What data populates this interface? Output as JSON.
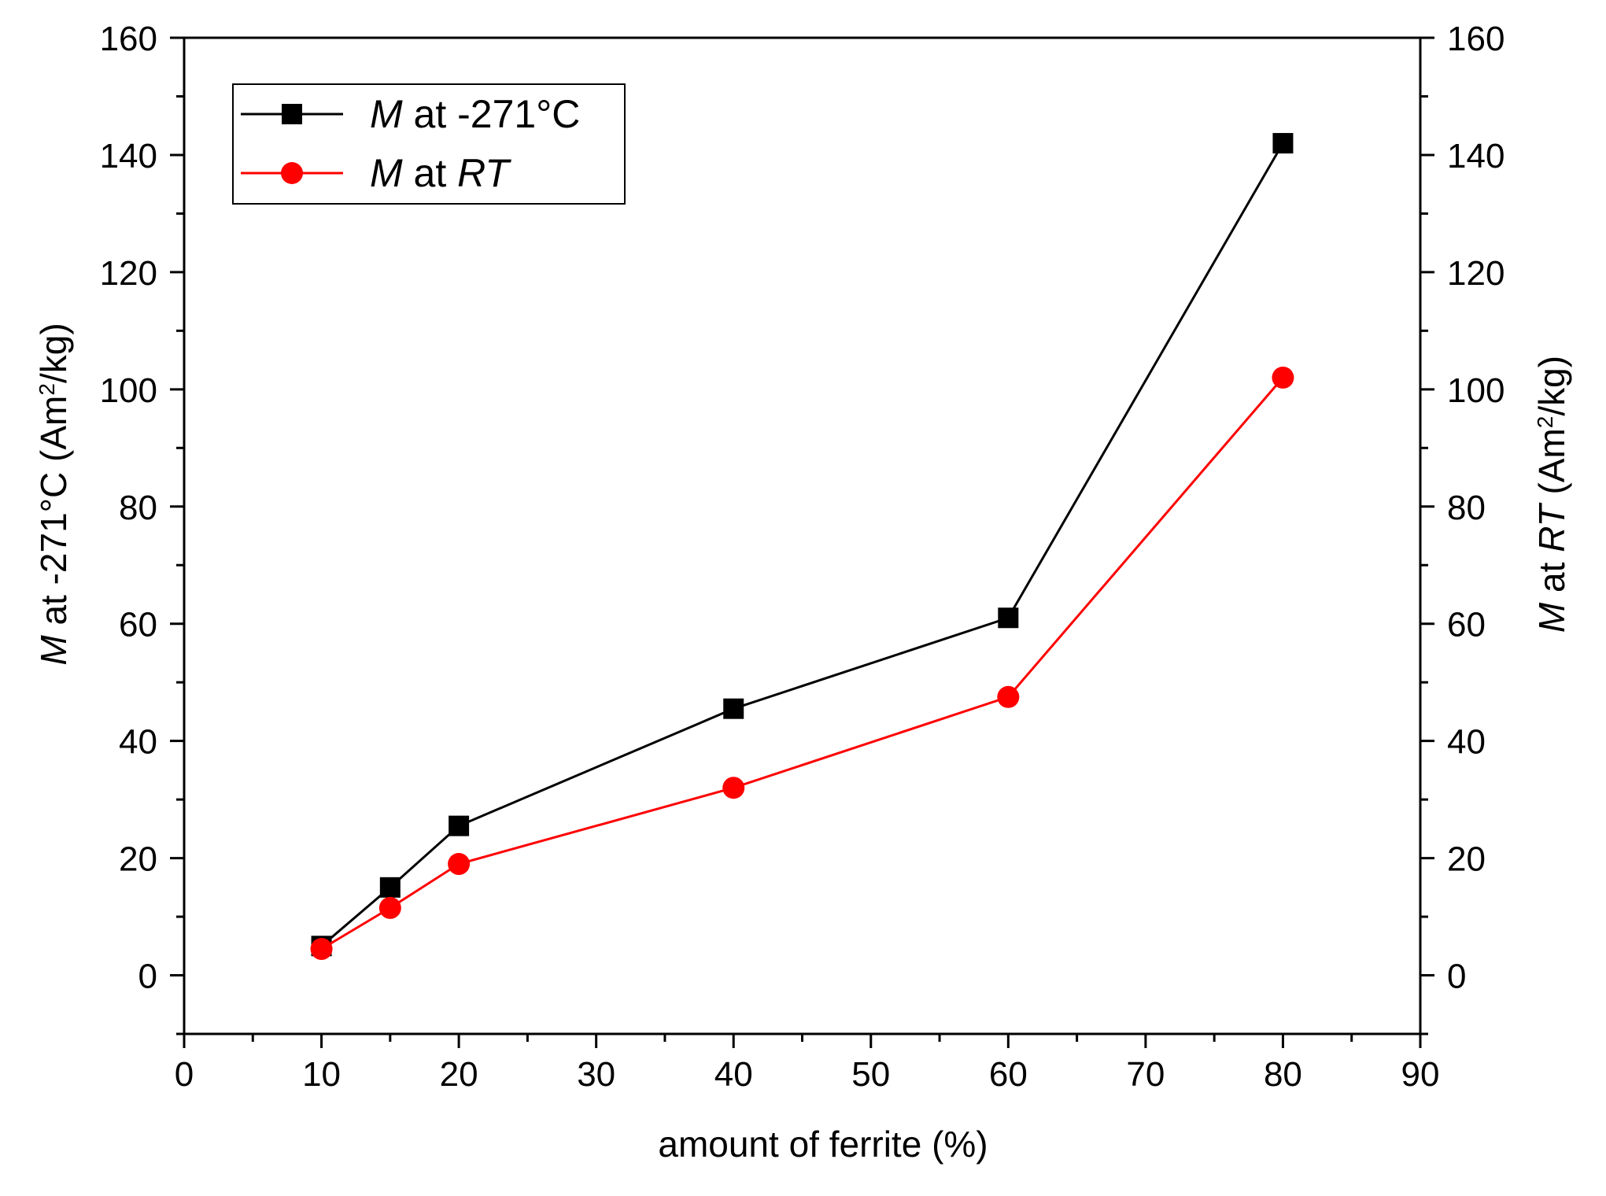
{
  "chart_data": {
    "type": "line",
    "xlabel": "amount of ferrite (%)",
    "ylabel_left": {
      "italic": "M",
      "rest": " at -271°C (Am",
      "sup": "2",
      "tail": "/kg)"
    },
    "ylabel_right": {
      "italic": "M",
      "rest": " at ",
      "italic2": "RT",
      "rest2": " (Am",
      "sup": "2",
      "tail": "/kg)"
    },
    "xlim": [
      0,
      90
    ],
    "ylim": [
      -10,
      160
    ],
    "x_ticks": [
      0,
      10,
      20,
      30,
      40,
      50,
      60,
      70,
      80,
      90
    ],
    "y_ticks": [
      0,
      20,
      40,
      60,
      80,
      100,
      120,
      140,
      160
    ],
    "legend_position": "top-left",
    "series": [
      {
        "name": "M at -271°C",
        "legend": {
          "italic": "M",
          "rest": " at -271°C"
        },
        "color": "#000000",
        "marker": "square",
        "x": [
          10,
          15,
          20,
          40,
          60,
          80
        ],
        "y": [
          5,
          15,
          25.5,
          45.5,
          61,
          142
        ]
      },
      {
        "name": "M at RT",
        "legend": {
          "italic": "M",
          "rest": " at ",
          "italic2": "RT"
        },
        "color": "#ff0000",
        "marker": "circle",
        "x": [
          10,
          15,
          20,
          40,
          60,
          80
        ],
        "y": [
          4.5,
          11.5,
          19,
          32,
          47.5,
          102
        ]
      }
    ]
  }
}
